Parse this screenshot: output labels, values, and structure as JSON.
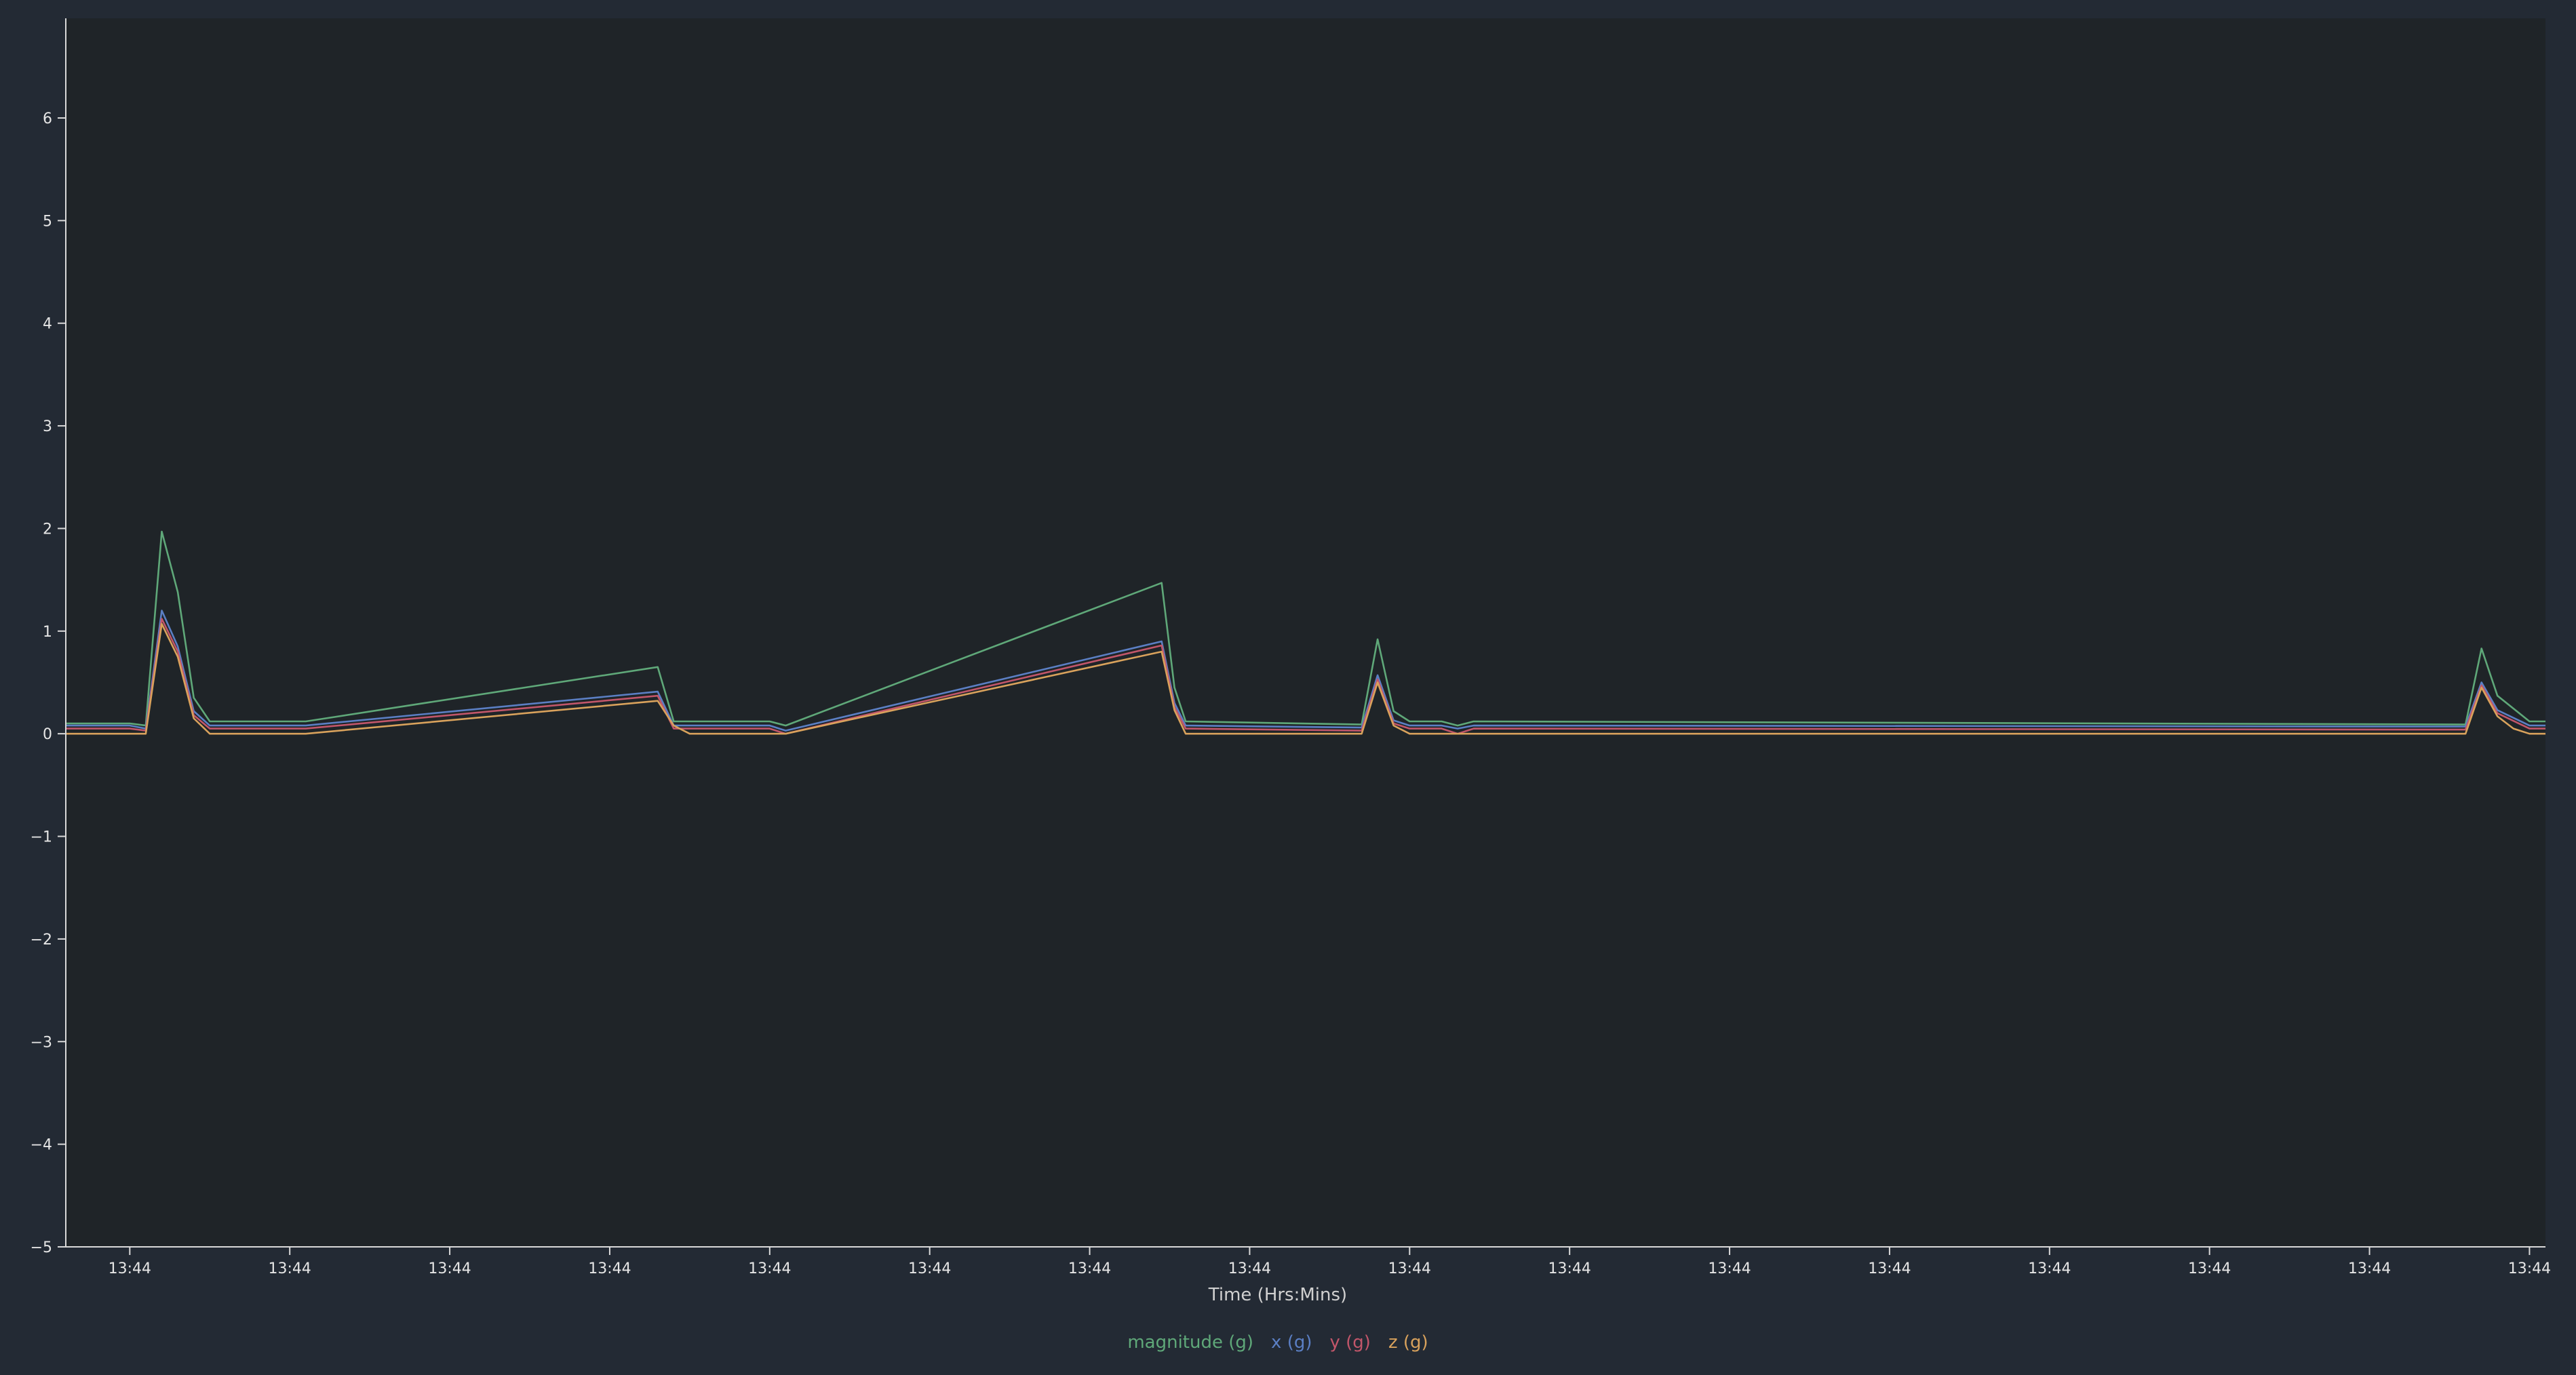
{
  "colors": {
    "page_background": "#232a34",
    "plot_background": "#1f2428",
    "axis": "#d9d9d9",
    "text": "#e6e6e6",
    "xlabel": "#d0d0d0"
  },
  "chart_data": {
    "type": "line",
    "title": "",
    "xlabel": "Time (Hrs:Mins)",
    "ylabel": "",
    "ylim": [
      -5,
      7
    ],
    "yticks": [
      -5,
      -4,
      -3,
      -2,
      -1,
      0,
      1,
      2,
      3,
      4,
      5,
      6
    ],
    "xlim": [
      0,
      155
    ],
    "xticks": [
      4,
      14,
      24,
      34,
      44,
      54,
      64,
      74,
      84,
      94,
      104,
      114,
      124,
      134,
      144,
      154
    ],
    "xtick_labels": [
      "13:44",
      "13:44",
      "13:44",
      "13:44",
      "13:44",
      "13:44",
      "13:44",
      "13:44",
      "13:44",
      "13:44",
      "13:44",
      "13:44",
      "13:44",
      "13:44",
      "13:44",
      "13:44"
    ],
    "grid": false,
    "legend_position": "bottom-center",
    "series": [
      {
        "name": "magnitude (g)",
        "color": "#5fa879",
        "points": [
          [
            0,
            0.1
          ],
          [
            4,
            0.1
          ],
          [
            5,
            0.08
          ],
          [
            6,
            1.97
          ],
          [
            7,
            1.38
          ],
          [
            8,
            0.35
          ],
          [
            9,
            0.12
          ],
          [
            15,
            0.12
          ],
          [
            37,
            0.65
          ],
          [
            38,
            0.12
          ],
          [
            44,
            0.12
          ],
          [
            45,
            0.08
          ],
          [
            68.5,
            1.47
          ],
          [
            69.3,
            0.45
          ],
          [
            70,
            0.12
          ],
          [
            81,
            0.09
          ],
          [
            82,
            0.92
          ],
          [
            83,
            0.22
          ],
          [
            84,
            0.12
          ],
          [
            86,
            0.12
          ],
          [
            87,
            0.08
          ],
          [
            88,
            0.12
          ],
          [
            150,
            0.09
          ],
          [
            151,
            0.83
          ],
          [
            152,
            0.37
          ],
          [
            154,
            0.12
          ],
          [
            155,
            0.12
          ]
        ]
      },
      {
        "name": "x (g)",
        "color": "#5b7fc4",
        "points": [
          [
            0,
            0.08
          ],
          [
            4,
            0.08
          ],
          [
            5,
            0.05
          ],
          [
            6,
            1.2
          ],
          [
            7,
            0.85
          ],
          [
            8,
            0.22
          ],
          [
            9,
            0.08
          ],
          [
            15,
            0.08
          ],
          [
            37,
            0.41
          ],
          [
            38,
            0.08
          ],
          [
            44,
            0.08
          ],
          [
            45,
            0.03
          ],
          [
            68.5,
            0.9
          ],
          [
            69.3,
            0.3
          ],
          [
            70,
            0.08
          ],
          [
            81,
            0.06
          ],
          [
            82,
            0.57
          ],
          [
            83,
            0.13
          ],
          [
            84,
            0.08
          ],
          [
            86,
            0.08
          ],
          [
            87,
            0.05
          ],
          [
            88,
            0.08
          ],
          [
            150,
            0.07
          ],
          [
            151,
            0.5
          ],
          [
            152,
            0.23
          ],
          [
            154,
            0.08
          ],
          [
            155,
            0.08
          ]
        ]
      },
      {
        "name": "y (g)",
        "color": "#c2566a",
        "points": [
          [
            0,
            0.05
          ],
          [
            4,
            0.05
          ],
          [
            5,
            0.03
          ],
          [
            6,
            1.12
          ],
          [
            7,
            0.8
          ],
          [
            8,
            0.18
          ],
          [
            9,
            0.05
          ],
          [
            15,
            0.05
          ],
          [
            37,
            0.37
          ],
          [
            38,
            0.05
          ],
          [
            44,
            0.05
          ],
          [
            45,
            0.0
          ],
          [
            68.5,
            0.86
          ],
          [
            69.3,
            0.26
          ],
          [
            70,
            0.05
          ],
          [
            81,
            0.03
          ],
          [
            82,
            0.53
          ],
          [
            83,
            0.1
          ],
          [
            84,
            0.05
          ],
          [
            86,
            0.05
          ],
          [
            87,
            0.0
          ],
          [
            88,
            0.05
          ],
          [
            150,
            0.04
          ],
          [
            151,
            0.47
          ],
          [
            152,
            0.2
          ],
          [
            154,
            0.05
          ],
          [
            155,
            0.05
          ]
        ]
      },
      {
        "name": "z (g)",
        "color": "#d9a25c",
        "points": [
          [
            0,
            0.0
          ],
          [
            4,
            0.0
          ],
          [
            5,
            0.0
          ],
          [
            6,
            1.07
          ],
          [
            7,
            0.75
          ],
          [
            8,
            0.15
          ],
          [
            9,
            0.0
          ],
          [
            15,
            0.0
          ],
          [
            37,
            0.32
          ],
          [
            38,
            0.08
          ],
          [
            39,
            0.0
          ],
          [
            45,
            0.0
          ],
          [
            68.5,
            0.8
          ],
          [
            69.3,
            0.23
          ],
          [
            70,
            0.0
          ],
          [
            81,
            0.0
          ],
          [
            82,
            0.5
          ],
          [
            83,
            0.08
          ],
          [
            84,
            0.0
          ],
          [
            86,
            0.0
          ],
          [
            87,
            0.0
          ],
          [
            88,
            0.0
          ],
          [
            150,
            0.0
          ],
          [
            151,
            0.45
          ],
          [
            152,
            0.17
          ],
          [
            153,
            0.05
          ],
          [
            154,
            0.0
          ],
          [
            155,
            0.0
          ]
        ]
      }
    ]
  }
}
